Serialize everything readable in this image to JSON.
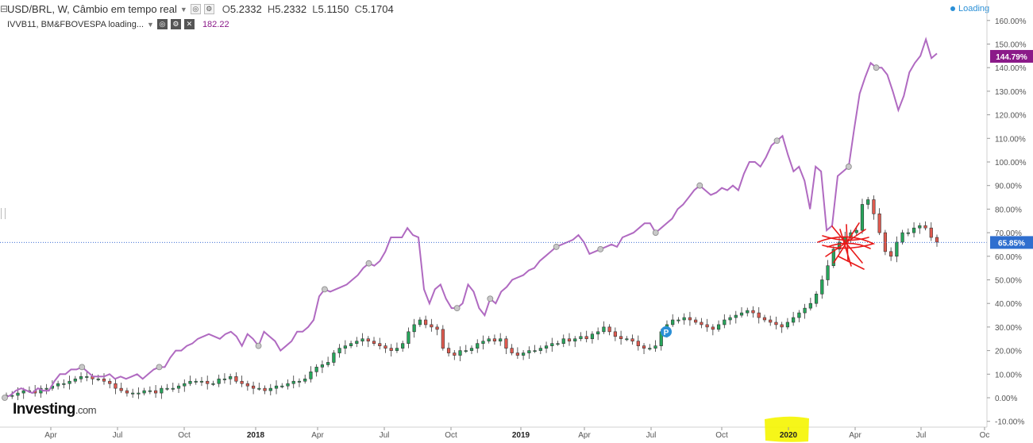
{
  "header": {
    "symbol": "USD/BRL, W, Câmbio em tempo real",
    "open_label": "O",
    "open": "5.2332",
    "high_label": "H",
    "high": "5.2332",
    "low_label": "L",
    "low": "5.1150",
    "close_label": "C",
    "close": "5.1704",
    "secondary_symbol": "IVVB11, BM&FBOVESPA loading...",
    "secondary_value": "182.22",
    "loading": "Loading"
  },
  "logo": {
    "main": "Investing",
    "suffix": ".com"
  },
  "colors": {
    "up": "#26a65b",
    "down": "#e05a4f",
    "line": "#b06ac1",
    "current_line": "#3f6fd6",
    "secondary_badge": "#8b1a89",
    "primary_badge": "#2f6fcf",
    "highlight": "#f5f500",
    "scribble": "#e81919"
  },
  "chart_data": {
    "type": "line",
    "y_axis": {
      "unit": "%",
      "range": [
        -10,
        160
      ],
      "ticks": [
        "160.00%",
        "150.00%",
        "140.00%",
        "130.00%",
        "120.00%",
        "110.00%",
        "100.00%",
        "90.00%",
        "80.00%",
        "70.00%",
        "60.00%",
        "50.00%",
        "40.00%",
        "30.00%",
        "20.00%",
        "10.00%",
        "0.00%",
        "-10.00%"
      ]
    },
    "x_axis": {
      "ticks": [
        "Apr",
        "Jul",
        "Oct",
        "2018",
        "Apr",
        "Jul",
        "Oct",
        "2019",
        "Apr",
        "Jul",
        "Oct",
        "2020",
        "Apr",
        "Jul",
        "Oc"
      ],
      "highlighted_tick": "2020"
    },
    "badges": {
      "secondary_last": "144.79%",
      "primary_last": "65.85%"
    },
    "current_level": 65.85,
    "series": [
      {
        "chart": "line",
        "markers": [
          0.0,
          4,
          12,
          19,
          20,
          22,
          20,
          46,
          55,
          68,
          12,
          22,
          52,
          70,
          72,
          84,
          112,
          129,
          146,
          144
        ],
        "values": [
          0,
          1,
          3,
          4,
          3,
          2,
          4,
          3,
          3,
          7,
          10,
          10,
          12,
          12,
          13,
          11,
          9,
          9,
          9,
          10,
          8,
          9,
          8,
          9,
          10,
          8,
          10,
          12,
          13,
          13,
          17,
          20,
          20,
          22,
          23,
          25,
          26,
          27,
          26,
          25,
          27,
          28,
          26,
          22,
          27,
          25,
          22,
          28,
          26,
          24,
          20,
          22,
          24,
          28,
          28,
          30,
          33,
          43,
          46,
          45,
          46,
          47,
          48,
          50,
          52,
          55,
          57,
          56,
          58,
          62,
          68,
          68,
          68,
          72,
          69,
          68,
          46,
          40,
          46,
          48,
          42,
          38,
          38,
          40,
          48,
          45,
          38,
          35,
          42,
          40,
          45,
          47,
          50,
          51,
          52,
          54,
          55,
          58,
          60,
          62,
          64,
          65,
          66,
          67,
          69,
          66,
          61,
          62,
          63,
          64,
          65,
          64,
          68,
          69,
          70,
          72,
          74,
          74,
          70,
          72,
          74,
          76,
          80,
          82,
          85,
          88,
          90,
          88,
          86,
          87,
          89,
          88,
          90,
          88,
          95,
          100,
          100,
          98,
          102,
          107,
          109,
          111,
          103,
          96,
          98,
          92,
          80,
          98,
          96,
          71,
          73,
          94,
          96,
          98,
          114,
          129,
          136,
          142,
          140,
          140,
          137,
          130,
          122,
          128,
          138,
          142,
          145,
          152,
          144,
          146
        ]
      },
      {
        "chart": "candlestick",
        "values": [
          1,
          1,
          2,
          3,
          3,
          2,
          4,
          4,
          5,
          6,
          6,
          7,
          8,
          9,
          9,
          8,
          8,
          7,
          6,
          4,
          3,
          2,
          2,
          2,
          3,
          3,
          2,
          4,
          4,
          4,
          5,
          6,
          7,
          7,
          7,
          6,
          6,
          8,
          8,
          9,
          7,
          6,
          5,
          4,
          4,
          3,
          4,
          5,
          5,
          6,
          7,
          7,
          8,
          11,
          13,
          14,
          15,
          19,
          21,
          22,
          23,
          24,
          25,
          24,
          23,
          22,
          21,
          20,
          21,
          23,
          28,
          31,
          33,
          31,
          30,
          29,
          21,
          19,
          18,
          20,
          20,
          21,
          23,
          24,
          25,
          24,
          25,
          21,
          19,
          18,
          19,
          20,
          20,
          21,
          22,
          23,
          23,
          25,
          24,
          25,
          26,
          25,
          27,
          28,
          30,
          28,
          26,
          25,
          25,
          24,
          22,
          21,
          21,
          22,
          28,
          31,
          33,
          33,
          34,
          33,
          32,
          31,
          30,
          29,
          31,
          33,
          34,
          35,
          36,
          37,
          36,
          34,
          33,
          32,
          31,
          30,
          32,
          34,
          36,
          38,
          40,
          44,
          50,
          56,
          63,
          66,
          68,
          70,
          71,
          82,
          84,
          78,
          70,
          62,
          60,
          66,
          70,
          70,
          72,
          73,
          72,
          68,
          66
        ]
      }
    ]
  }
}
